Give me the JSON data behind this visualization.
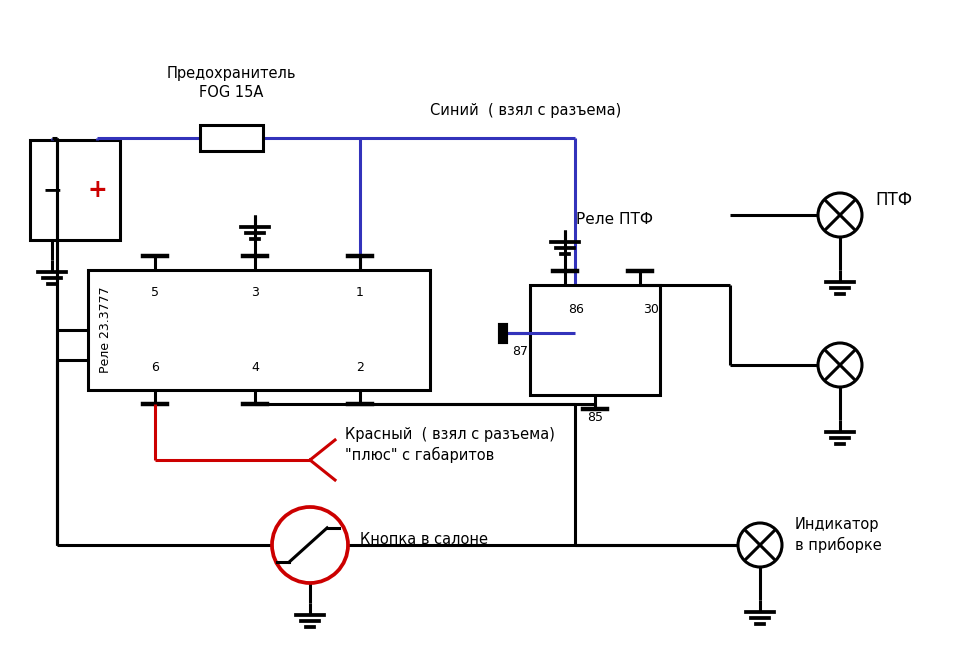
{
  "bg": "#ffffff",
  "lc": "#000000",
  "bc": "#3333bb",
  "rc": "#cc0000",
  "figsize": [
    9.62,
    6.56
  ],
  "dpi": 100,
  "lw": 2.2,
  "labels": {
    "fuse": "Предохранитель\nFOG 15A",
    "blue_wire": "Синий  ( взял с разъема)",
    "relay_main": "Реле 23.3777",
    "relay_ptf": "Реле ПТФ",
    "ptf": "ПТФ",
    "red_wire": "Красный  ( взял с разъема)\n\"плюс\" с габаритов",
    "button": "Кнопка в салоне",
    "indicator": "Индикатор\nв приборке",
    "p86": "86",
    "p87": "87",
    "p85": "85",
    "p30": "30",
    "p5": "5",
    "p3": "3",
    "p1": "1",
    "p6": "6",
    "p4": "4",
    "p2": "2"
  }
}
